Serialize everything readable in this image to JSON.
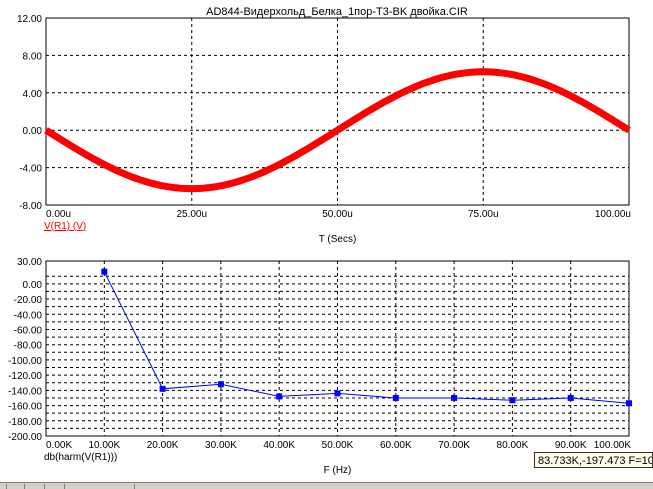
{
  "window": {
    "title": "AD844-Видерхольд_Белка_1пор-T3-BK двойка.CIR"
  },
  "colors": {
    "wave": "#ff0000",
    "spectrum": "#0000ff",
    "grid": "#000000",
    "axis_text": "#000000",
    "label_top": "#ff0000",
    "label_bottom": "#000000"
  },
  "cursor_readout": "83.733K,-197.473 F=10",
  "chart_data": [
    {
      "type": "line",
      "title": "AD844-Видерхольд_Белка_1пор-T3-BK двойка.CIR",
      "xlabel": "T (Secs)",
      "ylabel": "",
      "series_label": "V(R1) (V)",
      "xlim": [
        0,
        100
      ],
      "ylim": [
        -8,
        12
      ],
      "x_unit": "u",
      "x_ticks": [
        "0.00u",
        "25.00u",
        "50.00u",
        "75.00u",
        "100.00u"
      ],
      "y_ticks": [
        "12.00",
        "8.00",
        "4.00",
        "0.00",
        "-4.00",
        "-8.00"
      ],
      "grid": true,
      "series": [
        {
          "name": "V(R1) (V)",
          "color": "#ff0000",
          "x": [
            0,
            5,
            10,
            15,
            20,
            25,
            30,
            35,
            40,
            45,
            50,
            55,
            60,
            65,
            70,
            75,
            80,
            85,
            90,
            95,
            100
          ],
          "y": [
            0,
            -1.94,
            -3.68,
            -5.06,
            -5.95,
            -6.25,
            -5.95,
            -5.06,
            -3.68,
            -1.94,
            0,
            1.94,
            3.68,
            5.06,
            5.95,
            6.25,
            5.95,
            5.06,
            3.68,
            1.94,
            0
          ]
        }
      ]
    },
    {
      "type": "line",
      "title": "",
      "xlabel": "F (Hz)",
      "ylabel": "",
      "series_label": "db(harm(V(R1)))",
      "xlim": [
        0,
        100
      ],
      "ylim": [
        -200,
        30
      ],
      "x_unit": "K",
      "x_ticks": [
        "0.00K",
        "10.00K",
        "20.00K",
        "30.00K",
        "40.00K",
        "50.00K",
        "60.00K",
        "70.00K",
        "80.00K",
        "90.00K",
        "100.00K"
      ],
      "y_ticks": [
        "30.00",
        "0.00",
        "-20.00",
        "-40.00",
        "-60.00",
        "-80.00",
        "-100.00",
        "-120.00",
        "-140.00",
        "-160.00",
        "-180.00",
        "-200.00"
      ],
      "grid": true,
      "series": [
        {
          "name": "db(harm(V(R1)))",
          "color": "#0000ff",
          "x": [
            10,
            20,
            30,
            40,
            50,
            60,
            70,
            80,
            90,
            100
          ],
          "y": [
            16,
            -138,
            -132,
            -148,
            -144,
            -150,
            -150,
            -153,
            -150,
            -157
          ]
        }
      ]
    }
  ]
}
